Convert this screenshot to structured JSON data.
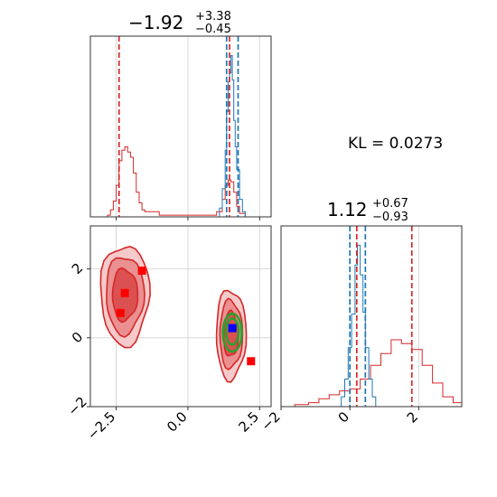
{
  "chart_data": {
    "type": "corner",
    "parameters": [
      {
        "title": {
          "median": "−1.92",
          "plus": "+3.38",
          "minus": "−0.45"
        }
      },
      {
        "title": {
          "median": "1.12",
          "plus": "+0.67",
          "minus": "−0.93"
        }
      }
    ],
    "kl_label": "KL = 0.0273",
    "colors": {
      "red": "#d62728",
      "blue": "#1f77b4",
      "green": "#2ca02c",
      "marker_red": "#ff0000",
      "marker_blue": "#0000ff"
    },
    "grid": true,
    "x_ticks": {
      "values": [
        -2.5,
        0.0,
        2.5
      ],
      "labels": [
        "−2.5",
        "0.0",
        "2.5"
      ]
    },
    "y_ticks": {
      "values": [
        -2,
        0,
        2
      ],
      "labels": [
        "−2",
        "0",
        "2"
      ]
    },
    "x2_ticks": {
      "values": [
        -2,
        0,
        2
      ],
      "labels": [
        "−2",
        "0",
        "2"
      ]
    },
    "xlim": [
      -3.4,
      2.9
    ],
    "ylim": [
      -2.0,
      3.25
    ],
    "x2lim": [
      -2.0,
      3.25
    ],
    "hist1": {
      "red_dashed": [
        -2.4,
        1.45
      ],
      "blue_dashed": [
        1.35,
        1.75
      ],
      "red_bins": [
        [
          -3.4,
          0.0
        ],
        [
          -2.8,
          0.01
        ],
        [
          -2.7,
          0.04
        ],
        [
          -2.6,
          0.09
        ],
        [
          -2.5,
          0.18
        ],
        [
          -2.4,
          0.32
        ],
        [
          -2.3,
          0.38
        ],
        [
          -2.2,
          0.4
        ],
        [
          -2.1,
          0.37
        ],
        [
          -2.0,
          0.34
        ],
        [
          -1.9,
          0.25
        ],
        [
          -1.8,
          0.14
        ],
        [
          -1.7,
          0.08
        ],
        [
          -1.6,
          0.04
        ],
        [
          -1.5,
          0.03
        ],
        [
          -1.0,
          0.01
        ],
        [
          0.8,
          0.01
        ],
        [
          1.0,
          0.03
        ],
        [
          1.2,
          0.1
        ],
        [
          1.3,
          0.18
        ],
        [
          1.4,
          0.21
        ],
        [
          1.5,
          0.2
        ],
        [
          1.6,
          0.14
        ],
        [
          1.7,
          0.06
        ],
        [
          1.8,
          0.02
        ],
        [
          2.0,
          0.0
        ],
        [
          2.9,
          0.0
        ]
      ],
      "blue_bins": [
        [
          1.0,
          0.0
        ],
        [
          1.1,
          0.05
        ],
        [
          1.2,
          0.16
        ],
        [
          1.3,
          0.38
        ],
        [
          1.35,
          0.6
        ],
        [
          1.4,
          0.77
        ],
        [
          1.45,
          0.82
        ],
        [
          1.5,
          0.92
        ],
        [
          1.55,
          0.78
        ],
        [
          1.6,
          0.55
        ],
        [
          1.65,
          0.4
        ],
        [
          1.7,
          0.27
        ],
        [
          1.8,
          0.1
        ],
        [
          1.9,
          0.03
        ],
        [
          2.0,
          0.0
        ]
      ]
    },
    "hist2": {
      "red_dashed": [
        0.2,
        1.8
      ],
      "blue_dashed": [
        0.0,
        0.45
      ],
      "red_bins": [
        [
          -2.0,
          0.0
        ],
        [
          -1.6,
          0.01
        ],
        [
          -1.2,
          0.02
        ],
        [
          -0.9,
          0.04
        ],
        [
          -0.6,
          0.06
        ],
        [
          -0.3,
          0.08
        ],
        [
          0.0,
          0.09
        ],
        [
          0.3,
          0.14
        ],
        [
          0.6,
          0.21
        ],
        [
          0.9,
          0.27
        ],
        [
          1.2,
          0.34
        ],
        [
          1.5,
          0.32
        ],
        [
          1.8,
          0.29
        ],
        [
          2.1,
          0.21
        ],
        [
          2.4,
          0.12
        ],
        [
          2.7,
          0.05
        ],
        [
          3.0,
          0.02
        ],
        [
          3.25,
          0.0
        ]
      ],
      "blue_bins": [
        [
          -0.35,
          0.0
        ],
        [
          -0.25,
          0.05
        ],
        [
          -0.15,
          0.14
        ],
        [
          -0.05,
          0.3
        ],
        [
          0.05,
          0.47
        ],
        [
          0.15,
          0.72
        ],
        [
          0.22,
          0.82
        ],
        [
          0.3,
          0.67
        ],
        [
          0.38,
          0.48
        ],
        [
          0.45,
          0.3
        ],
        [
          0.55,
          0.14
        ],
        [
          0.65,
          0.05
        ],
        [
          0.75,
          0.0
        ]
      ]
    },
    "contour_2d": {
      "red_blobs": [
        {
          "cx": -2.2,
          "cy": 1.25,
          "rx": 0.85,
          "ry": 1.45,
          "levels": [
            1.0,
            0.78,
            0.52
          ]
        },
        {
          "cx": 1.5,
          "cy": 0.1,
          "rx": 0.52,
          "ry": 1.3,
          "levels": [
            1.0,
            0.76,
            0.5
          ]
        }
      ],
      "green_rings": [
        {
          "cx": 1.55,
          "cy": 0.15,
          "rx": 0.33,
          "ry": 0.55
        },
        {
          "cx": 1.55,
          "cy": 0.18,
          "rx": 0.22,
          "ry": 0.38
        }
      ],
      "red_markers": [
        [
          -1.6,
          1.95
        ],
        [
          -2.2,
          1.3
        ],
        [
          -2.35,
          0.72
        ],
        [
          2.2,
          -0.68
        ]
      ],
      "blue_marker": [
        1.55,
        0.28
      ]
    }
  }
}
